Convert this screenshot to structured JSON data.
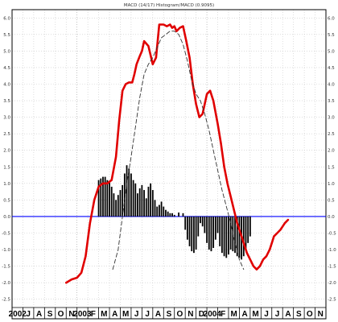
{
  "chart_data": {
    "type": "line",
    "title": "MACD (14/17) Histogram/MACD (0.9095)",
    "y_ticks": [
      "6.0",
      "5.5",
      "5.0",
      "4.5",
      "4.0",
      "3.5",
      "3.0",
      "2.5",
      "2.0",
      "1.5",
      "1.0",
      "0.5",
      "0.0",
      "-0.5",
      "-1.0",
      "-1.5",
      "-2.0",
      "-2.5"
    ],
    "ylim": [
      -2.75,
      6.25
    ],
    "x_labels": [
      "2002",
      "J",
      "A",
      "S",
      "O",
      "N",
      "2003",
      "F",
      "M",
      "A",
      "M",
      "J",
      "J",
      "A",
      "S",
      "O",
      "N",
      "D",
      "2004",
      "F",
      "M",
      "A",
      "M",
      "J",
      "J",
      "A",
      "S",
      "O",
      "N"
    ],
    "zero_line": 0.0,
    "series": [
      {
        "kind": "line",
        "color": "#e00000",
        "x": [
          5.0,
          5.5,
          6.0,
          6.4,
          6.8,
          7.2,
          7.6,
          8.0,
          8.4,
          8.8,
          9.2,
          9.6,
          9.9,
          10.2,
          10.5,
          10.8,
          11.1,
          11.3,
          11.5,
          11.8,
          12.0,
          12.2,
          12.6,
          13.0,
          13.3,
          13.6,
          14.0,
          14.3,
          14.6,
          14.8,
          15.0,
          15.2,
          15.5,
          15.8,
          16.1,
          16.4,
          16.7,
          17.0,
          17.3,
          17.6,
          18.0,
          18.3,
          18.6,
          19.0,
          19.3,
          19.6,
          19.9,
          20.2,
          20.5,
          20.8,
          21.1,
          21.4,
          21.7,
          22.0,
          22.3,
          22.6,
          22.9,
          23.2,
          23.5,
          23.8,
          24.0,
          24.2,
          24.5,
          24.8,
          25.0,
          25.2,
          25.5
        ],
        "y": [
          -2.0,
          -1.9,
          -1.85,
          -1.7,
          -1.2,
          -0.2,
          0.5,
          0.9,
          1.0,
          1.0,
          1.1,
          1.8,
          2.9,
          3.8,
          4.0,
          4.05,
          4.05,
          4.3,
          4.6,
          4.85,
          5.0,
          5.3,
          5.15,
          4.6,
          4.8,
          5.8,
          5.8,
          5.75,
          5.8,
          5.7,
          5.75,
          5.6,
          5.7,
          5.75,
          5.3,
          4.8,
          4.0,
          3.4,
          3.0,
          3.1,
          3.7,
          3.8,
          3.5,
          2.8,
          2.2,
          1.5,
          1.0,
          0.6,
          0.2,
          -0.2,
          -0.5,
          -0.8,
          -1.1,
          -1.3,
          -1.5,
          -1.6,
          -1.5,
          -1.3,
          -1.2,
          -1.0,
          -0.8,
          -0.6,
          -0.5,
          -0.4,
          -0.3,
          -0.2,
          -0.1
        ]
      },
      {
        "kind": "dashed",
        "color": "#333333",
        "x": [
          9.3,
          9.8,
          10.2,
          10.6,
          11.0,
          11.4,
          11.8,
          12.2,
          12.6,
          13.0,
          13.4,
          13.8,
          14.2,
          14.6,
          15.0,
          15.4,
          15.8,
          16.2,
          16.6,
          17.0,
          17.4,
          17.8,
          18.2,
          18.6,
          19.0,
          19.4,
          19.8,
          20.2,
          20.6,
          21.0,
          21.4
        ],
        "y": [
          -1.6,
          -1.0,
          0.0,
          1.0,
          1.8,
          2.7,
          3.6,
          4.3,
          4.6,
          4.8,
          5.1,
          5.4,
          5.5,
          5.6,
          5.6,
          5.5,
          5.2,
          4.7,
          4.1,
          3.7,
          3.5,
          3.1,
          2.6,
          2.0,
          1.4,
          0.8,
          0.3,
          -0.2,
          -0.8,
          -1.3,
          -1.6
        ]
      },
      {
        "kind": "histogram",
        "color": "#000000",
        "x": [
          8.0,
          8.2,
          8.4,
          8.6,
          8.8,
          9.0,
          9.2,
          9.4,
          9.6,
          9.8,
          10.0,
          10.2,
          10.4,
          10.6,
          10.8,
          11.0,
          11.2,
          11.4,
          11.6,
          11.8,
          12.0,
          12.2,
          12.4,
          12.6,
          12.8,
          13.0,
          13.2,
          13.4,
          13.6,
          13.8,
          14.0,
          14.2,
          14.4,
          14.6,
          14.8,
          15.0,
          15.2,
          15.4,
          15.6,
          15.8,
          16.0,
          16.2,
          16.4,
          16.6,
          16.8,
          17.0,
          17.2,
          17.4,
          17.6,
          17.8,
          18.0,
          18.2,
          18.4,
          18.6,
          18.8,
          19.0,
          19.2,
          19.4,
          19.6,
          19.8,
          20.0,
          20.2,
          20.4,
          20.6,
          20.8,
          21.0,
          21.2,
          21.4,
          21.6,
          21.8,
          22.0
        ],
        "values": [
          1.1,
          1.15,
          1.2,
          1.2,
          1.1,
          1.05,
          0.9,
          0.7,
          0.5,
          0.65,
          0.8,
          0.95,
          1.3,
          1.55,
          1.45,
          1.3,
          1.1,
          1.0,
          0.7,
          0.85,
          0.95,
          0.8,
          0.55,
          0.9,
          1.0,
          0.8,
          0.5,
          0.3,
          0.35,
          0.45,
          0.3,
          0.2,
          0.15,
          0.1,
          0.1,
          0.05,
          0.0,
          0.12,
          0.0,
          0.1,
          -0.4,
          -0.7,
          -0.9,
          -1.05,
          -1.1,
          -1.0,
          -0.6,
          -0.2,
          -0.3,
          -0.5,
          -0.8,
          -1.0,
          -1.05,
          -0.95,
          -0.7,
          -0.5,
          -0.9,
          -1.1,
          -1.2,
          -1.25,
          -1.15,
          -1.0,
          -1.05,
          -1.1,
          -1.2,
          -1.25,
          -1.3,
          -1.2,
          -1.0,
          -0.8,
          -0.6
        ]
      }
    ],
    "grid": true,
    "colors": {
      "zero_line": "#0000ff",
      "grid": "#c8c8c8",
      "axis": "#000000"
    }
  }
}
